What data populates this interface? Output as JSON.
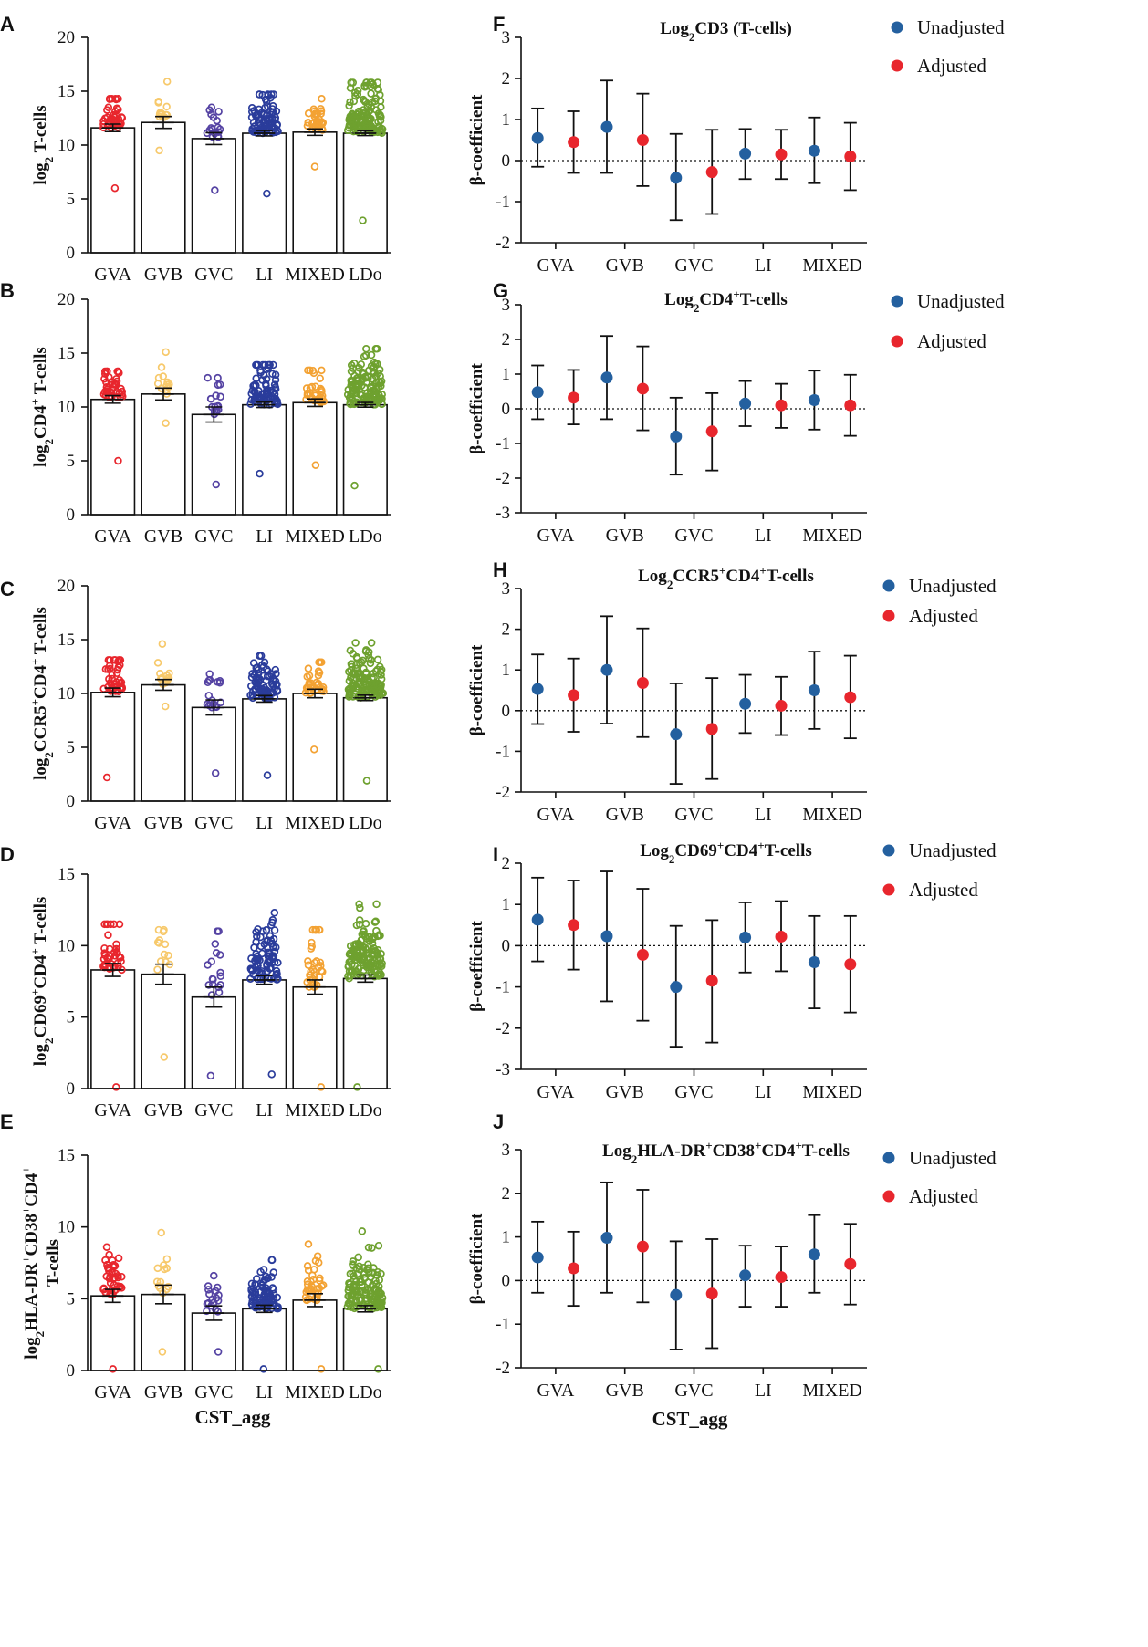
{
  "colors": {
    "GVA": "#e8262d",
    "GVB": "#f7c96b",
    "GVC": "#5543a3",
    "LI": "#2a3c9b",
    "MIXED": "#f3a233",
    "LDo": "#6ea12f",
    "unadjusted": "#24609f",
    "adjusted": "#e8262d",
    "axis": "#111111"
  },
  "x_title": "CST_agg",
  "chart_data": [
    {
      "letter": "A",
      "type": "scatter",
      "ylabel_main": "log",
      "ylabel_sub": "2",
      "ylabel_sup": "",
      "ylabel_rest": " T-cells",
      "ylabel_line2": "",
      "ylim": [
        0,
        20
      ],
      "yticks": [
        0,
        5,
        10,
        15,
        20
      ],
      "tick_labels": [
        "0",
        "5",
        "10",
        "15",
        "20"
      ],
      "categories": [
        "GVA",
        "GVB",
        "GVC",
        "LI",
        "MIXED",
        "LDo"
      ],
      "n": [
        40,
        14,
        18,
        80,
        34,
        130
      ],
      "means": [
        11.6,
        12.1,
        10.6,
        11.1,
        11.2,
        11.1
      ],
      "sem": [
        0.35,
        0.55,
        0.55,
        0.25,
        0.3,
        0.22
      ],
      "mins": [
        6.0,
        9.5,
        5.8,
        5.5,
        8.0,
        3.0
      ],
      "maxs": [
        14.3,
        15.9,
        13.5,
        14.7,
        14.3,
        15.8
      ]
    },
    {
      "letter": "B",
      "type": "scatter",
      "ylabel_main": "log",
      "ylabel_sub": "2",
      "ylabel_sup": "+",
      "ylabel_rest": "CD4",
      "ylabel_tail": " T-cells",
      "ylabel_line2": "",
      "ylim": [
        0,
        20
      ],
      "yticks": [
        0,
        5,
        10,
        15,
        20
      ],
      "tick_labels": [
        "0",
        "5",
        "10",
        "15",
        "20"
      ],
      "categories": [
        "GVA",
        "GVB",
        "GVC",
        "LI",
        "MIXED",
        "LDo"
      ],
      "n": [
        40,
        14,
        18,
        80,
        34,
        130
      ],
      "means": [
        10.7,
        11.2,
        9.3,
        10.2,
        10.4,
        10.2
      ],
      "sem": [
        0.35,
        0.55,
        0.7,
        0.25,
        0.35,
        0.22
      ],
      "mins": [
        5.0,
        8.5,
        2.8,
        3.8,
        4.6,
        2.7
      ],
      "maxs": [
        13.3,
        15.1,
        12.7,
        13.9,
        13.4,
        15.4
      ]
    },
    {
      "letter": "C",
      "type": "scatter",
      "ylabel_main": "log",
      "ylabel_sub": "2",
      "ylabel_sup": "+",
      "ylabel_rest": "CCR5",
      "ylabel_tail": "CD4",
      "ylabel_sup2": "+",
      "ylabel_tail2": " T-cells",
      "ylabel_line2": "",
      "ylim": [
        0,
        20
      ],
      "yticks": [
        0,
        5,
        10,
        15,
        20
      ],
      "tick_labels": [
        "0",
        "5",
        "10",
        "15",
        "20"
      ],
      "categories": [
        "GVA",
        "GVB",
        "GVC",
        "LI",
        "MIXED",
        "LDo"
      ],
      "n": [
        40,
        14,
        18,
        80,
        34,
        130
      ],
      "means": [
        10.1,
        10.8,
        8.7,
        9.5,
        10.0,
        9.6
      ],
      "sem": [
        0.4,
        0.5,
        0.7,
        0.3,
        0.4,
        0.25
      ],
      "mins": [
        2.2,
        8.8,
        2.6,
        2.4,
        4.8,
        1.9
      ],
      "maxs": [
        13.1,
        14.6,
        11.8,
        13.5,
        12.9,
        14.7
      ]
    },
    {
      "letter": "D",
      "type": "scatter",
      "ylabel_main": "log",
      "ylabel_sub": "2",
      "ylabel_sup": "+",
      "ylabel_rest": "CD69",
      "ylabel_tail": "CD4",
      "ylabel_sup2": "+",
      "ylabel_tail2": " T-cells",
      "ylabel_line2": "",
      "ylim": [
        0,
        15
      ],
      "yticks": [
        0,
        5,
        10,
        15
      ],
      "tick_labels": [
        "0",
        "5",
        "10",
        "15"
      ],
      "categories": [
        "GVA",
        "GVB",
        "GVC",
        "LI",
        "MIXED",
        "LDo"
      ],
      "n": [
        40,
        14,
        18,
        80,
        34,
        130
      ],
      "means": [
        8.3,
        8.0,
        6.4,
        7.6,
        7.1,
        7.7
      ],
      "sem": [
        0.45,
        0.7,
        0.7,
        0.3,
        0.5,
        0.25
      ],
      "mins": [
        0.1,
        2.2,
        0.9,
        1.0,
        0.1,
        0.1
      ],
      "maxs": [
        11.5,
        11.1,
        11.0,
        12.3,
        11.1,
        12.9
      ]
    },
    {
      "letter": "E",
      "type": "scatter",
      "ylabel_main": "log",
      "ylabel_sub": "2",
      "ylabel_sup": "+",
      "ylabel_rest": "HLA-DR",
      "ylabel_tail": "CD38",
      "ylabel_sup2": "+",
      "ylabel_tail2": "CD4",
      "ylabel_sup3": "+",
      "ylabel_line2": "T-cells",
      "ylim": [
        0,
        15
      ],
      "yticks": [
        0,
        5,
        10,
        15
      ],
      "tick_labels": [
        "0",
        "5",
        "10",
        "15"
      ],
      "categories": [
        "GVA",
        "GVB",
        "GVC",
        "LI",
        "MIXED",
        "LDo"
      ],
      "n": [
        40,
        14,
        18,
        80,
        34,
        130
      ],
      "means": [
        5.2,
        5.3,
        4.0,
        4.3,
        4.9,
        4.3
      ],
      "sem": [
        0.45,
        0.65,
        0.5,
        0.25,
        0.45,
        0.22
      ],
      "mins": [
        0.1,
        1.3,
        1.3,
        0.1,
        0.1,
        0.1
      ],
      "maxs": [
        8.6,
        9.6,
        6.6,
        7.7,
        8.8,
        9.7
      ]
    },
    {
      "letter": "F",
      "type": "errorbar",
      "title_main": "Log",
      "title_sub": "2",
      "title_rest": "CD3 (T-cells)",
      "ylabel": "β-coefficient",
      "ylim": [
        -2,
        3
      ],
      "yticks": [
        -2,
        -1,
        0,
        1,
        2,
        3
      ],
      "tick_labels": [
        "-2",
        "-1",
        "0",
        "1",
        "2",
        "3"
      ],
      "categories": [
        "GVA",
        "GVB",
        "GVC",
        "LI",
        "MIXED"
      ],
      "legend": [
        "Unadjusted",
        "Adjusted"
      ],
      "series": [
        {
          "name": "Unadjusted",
          "values": [
            0.55,
            0.82,
            -0.42,
            0.17,
            0.24
          ],
          "lower": [
            -0.15,
            -0.3,
            -1.45,
            -0.45,
            -0.55
          ],
          "upper": [
            1.27,
            1.95,
            0.65,
            0.77,
            1.05
          ]
        },
        {
          "name": "Adjusted",
          "values": [
            0.45,
            0.5,
            -0.28,
            0.15,
            0.1
          ],
          "lower": [
            -0.3,
            -0.62,
            -1.3,
            -0.45,
            -0.72
          ],
          "upper": [
            1.2,
            1.63,
            0.75,
            0.75,
            0.92
          ]
        }
      ]
    },
    {
      "letter": "G",
      "type": "errorbar",
      "title_main": "Log",
      "title_sub": "2",
      "title_rest": "CD4",
      "title_sup": "+",
      "title_tail": "T-cells",
      "ylabel": "β-coefficient",
      "ylim": [
        -3,
        3
      ],
      "yticks": [
        -3,
        -2,
        -1,
        0,
        1,
        2,
        3
      ],
      "tick_labels": [
        "-3",
        "-2",
        "-1",
        "0",
        "1",
        "2",
        "3"
      ],
      "categories": [
        "GVA",
        "GVB",
        "GVC",
        "LI",
        "MIXED"
      ],
      "legend": [
        "Unadjusted",
        "Adjusted"
      ],
      "series": [
        {
          "name": "Unadjusted",
          "values": [
            0.48,
            0.9,
            -0.8,
            0.15,
            0.25
          ],
          "lower": [
            -0.3,
            -0.3,
            -1.9,
            -0.5,
            -0.6
          ],
          "upper": [
            1.25,
            2.1,
            0.32,
            0.8,
            1.1
          ]
        },
        {
          "name": "Adjusted",
          "values": [
            0.32,
            0.58,
            -0.65,
            0.1,
            0.1
          ],
          "lower": [
            -0.45,
            -0.62,
            -1.78,
            -0.55,
            -0.78
          ],
          "upper": [
            1.12,
            1.8,
            0.45,
            0.72,
            0.98
          ]
        }
      ]
    },
    {
      "letter": "H",
      "type": "errorbar",
      "title_main": "Log",
      "title_sub": "2",
      "title_rest": "CCR5",
      "title_sup": "+",
      "title_tail": "CD4",
      "title_sup2": "+",
      "title_tail2": "T-cells",
      "ylabel": "β-coefficient",
      "ylim": [
        -2,
        3
      ],
      "yticks": [
        -2,
        -1,
        0,
        1,
        2,
        3
      ],
      "tick_labels": [
        "-2",
        "-1",
        "0",
        "1",
        "2",
        "3"
      ],
      "categories": [
        "GVA",
        "GVB",
        "GVC",
        "LI",
        "MIXED"
      ],
      "legend": [
        "Unadjusted",
        "Adjusted"
      ],
      "series": [
        {
          "name": "Unadjusted",
          "values": [
            0.53,
            1.0,
            -0.58,
            0.17,
            0.5
          ],
          "lower": [
            -0.33,
            -0.32,
            -1.8,
            -0.55,
            -0.45
          ],
          "upper": [
            1.38,
            2.32,
            0.67,
            0.88,
            1.45
          ]
        },
        {
          "name": "Adjusted",
          "values": [
            0.38,
            0.68,
            -0.45,
            0.12,
            0.33
          ],
          "lower": [
            -0.52,
            -0.65,
            -1.68,
            -0.6,
            -0.68
          ],
          "upper": [
            1.28,
            2.02,
            0.8,
            0.83,
            1.35
          ]
        }
      ]
    },
    {
      "letter": "I",
      "type": "errorbar",
      "title_main": "Log",
      "title_sub": "2",
      "title_rest": "CD69",
      "title_sup": "+",
      "title_tail": "CD4",
      "title_sup2": "+",
      "title_tail2": "T-cells",
      "ylabel": "β-coefficient",
      "ylim": [
        -3,
        2
      ],
      "yticks": [
        -3,
        -2,
        -1,
        0,
        1,
        2
      ],
      "tick_labels": [
        "-3",
        "-2",
        "-1",
        "0",
        "1",
        "2"
      ],
      "categories": [
        "GVA",
        "GVB",
        "GVC",
        "LI",
        "MIXED"
      ],
      "legend": [
        "Unadjusted",
        "Adjusted"
      ],
      "series": [
        {
          "name": "Unadjusted",
          "values": [
            0.63,
            0.23,
            -1.0,
            0.2,
            -0.4
          ],
          "lower": [
            -0.38,
            -1.35,
            -2.45,
            -0.65,
            -1.52
          ],
          "upper": [
            1.65,
            1.8,
            0.48,
            1.05,
            0.72
          ]
        },
        {
          "name": "Adjusted",
          "values": [
            0.5,
            -0.22,
            -0.85,
            0.22,
            -0.45
          ],
          "lower": [
            -0.58,
            -1.82,
            -2.35,
            -0.62,
            -1.62
          ],
          "upper": [
            1.58,
            1.38,
            0.62,
            1.08,
            0.72
          ]
        }
      ]
    },
    {
      "letter": "J",
      "type": "errorbar",
      "title_main": "Log",
      "title_sub": "2",
      "title_rest": "HLA-DR",
      "title_sup": "+",
      "title_tail": "CD38",
      "title_sup2": "+",
      "title_tail2": "CD4",
      "title_sup3": "+",
      "title_tail3": "T-cells",
      "ylabel": "β-coefficient",
      "ylim": [
        -2,
        3
      ],
      "yticks": [
        -2,
        -1,
        0,
        1,
        2,
        3
      ],
      "tick_labels": [
        "-2",
        "-1",
        "0",
        "1",
        "2",
        "3"
      ],
      "categories": [
        "GVA",
        "GVB",
        "GVC",
        "LI",
        "MIXED"
      ],
      "legend": [
        "Unadjusted",
        "Adjusted"
      ],
      "series": [
        {
          "name": "Unadjusted",
          "values": [
            0.53,
            0.98,
            -0.33,
            0.12,
            0.6
          ],
          "lower": [
            -0.28,
            -0.28,
            -1.58,
            -0.6,
            -0.28
          ],
          "upper": [
            1.35,
            2.25,
            0.9,
            0.8,
            1.5
          ]
        },
        {
          "name": "Adjusted",
          "values": [
            0.28,
            0.78,
            -0.3,
            0.08,
            0.38
          ],
          "lower": [
            -0.58,
            -0.5,
            -1.55,
            -0.6,
            -0.55
          ],
          "upper": [
            1.12,
            2.08,
            0.95,
            0.78,
            1.3
          ]
        }
      ]
    }
  ]
}
